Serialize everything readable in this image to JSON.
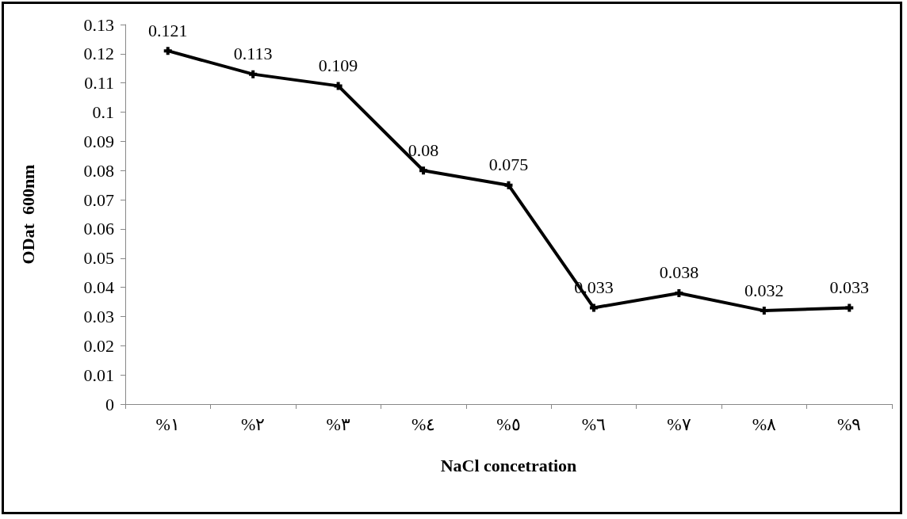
{
  "chart_data": {
    "type": "line",
    "xlabel": "NaCl concetration",
    "ylabel": "ODat  600nm",
    "categories": [
      "%١",
      "%٢",
      "%٣",
      "%٤",
      "%٥",
      "%٦",
      "%٧",
      "%٨",
      "%٩"
    ],
    "series": [
      {
        "color": "#000000",
        "values": [
          0.121,
          0.113,
          0.109,
          0.08,
          0.075,
          0.033,
          0.038,
          0.032,
          0.033
        ]
      }
    ],
    "ylim": [
      0,
      0.13
    ],
    "yticks": [
      0,
      0.01,
      0.02,
      0.03,
      0.04,
      0.05,
      0.06,
      0.07,
      0.08,
      0.09,
      0.1,
      0.11,
      0.12,
      0.13
    ],
    "data_labels": true,
    "marker": "cross",
    "line_style": "solid"
  }
}
